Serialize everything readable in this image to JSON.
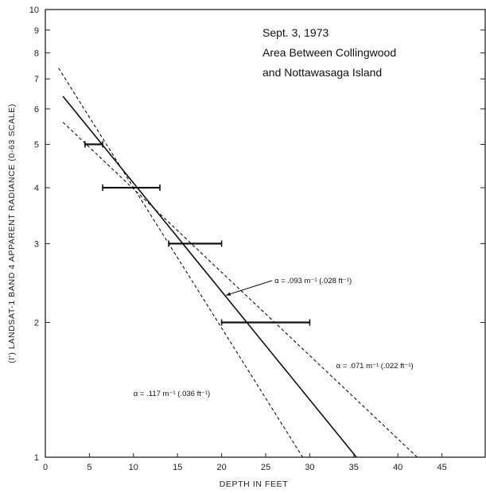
{
  "chart_data": {
    "type": "scatter",
    "title_lines": [
      "Sept. 3, 1973",
      "Area Between Collingwood",
      "and Nottawasaga Island"
    ],
    "xlabel": "DEPTH IN FEET",
    "ylabel": "(I') LANDSAT-1 BAND 4 APPARENT RADIANCE (0-63 SCALE)",
    "xlim": [
      0,
      50
    ],
    "ylim": [
      1,
      10
    ],
    "y_scale": "log",
    "x_ticks": [
      0,
      5,
      10,
      15,
      20,
      25,
      30,
      35,
      40,
      45
    ],
    "y_ticks": [
      1,
      2,
      3,
      4,
      5,
      6,
      7,
      8,
      9,
      10
    ],
    "error_bars": [
      {
        "y": 5,
        "xmin": 4.5,
        "xmax": 6.5
      },
      {
        "y": 4,
        "xmin": 6.5,
        "xmax": 13
      },
      {
        "y": 3,
        "xmin": 14,
        "xmax": 20
      },
      {
        "y": 2,
        "xmin": 20,
        "xmax": 30
      }
    ],
    "lines": [
      {
        "style": "solid",
        "points": [
          [
            2,
            6.4
          ],
          [
            35.3,
            1
          ]
        ]
      },
      {
        "style": "dashed",
        "points": [
          [
            1.5,
            7.4
          ],
          [
            29.2,
            1
          ]
        ],
        "label": "α = .117 m⁻¹ (.036 ft⁻¹)"
      },
      {
        "style": "dashed",
        "points": [
          [
            2,
            5.6
          ],
          [
            42.2,
            1
          ]
        ],
        "label": "α = .071 m⁻¹ (.022 ft⁻¹)"
      }
    ],
    "annotations": [
      {
        "text": "α = .093 m⁻¹ (.028 ft⁻¹)",
        "x": 26,
        "y": 2.45,
        "arrow_to": [
          20.5,
          2.3
        ]
      },
      {
        "text": "α = .071 m⁻¹ (.022 ft⁻¹)",
        "x": 33,
        "y": 1.58
      },
      {
        "text": "α = .117 m⁻¹ (.036 ft⁻¹)",
        "x": 10,
        "y": 1.37
      }
    ]
  }
}
